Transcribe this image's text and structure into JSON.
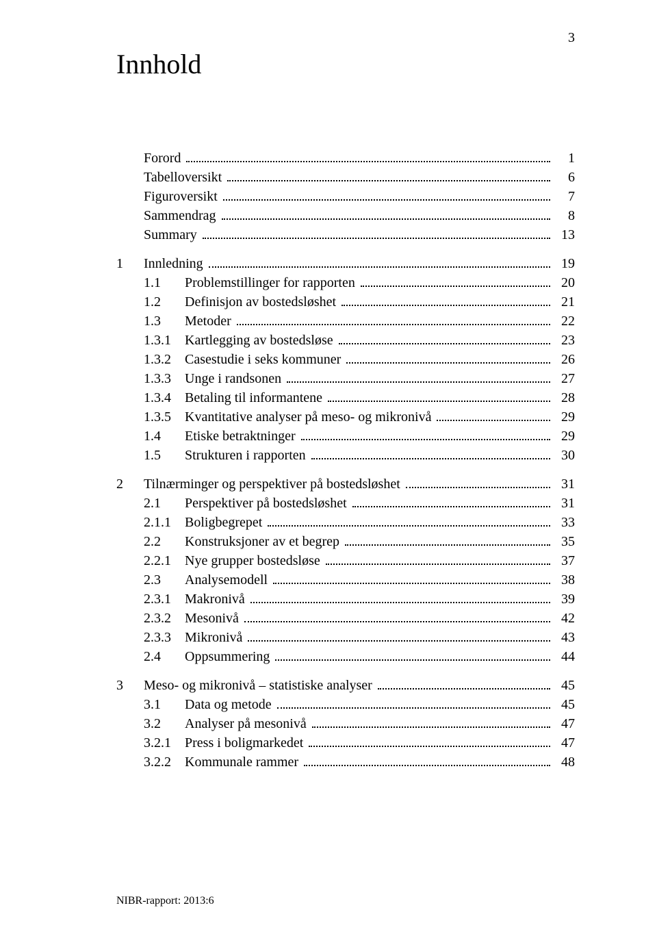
{
  "page_number": "3",
  "title": "Innhold",
  "footer": "NIBR-rapport: 2013:6",
  "front_matter": [
    {
      "label": "Forord",
      "page": "1"
    },
    {
      "label": "Tabelloversikt",
      "page": "6"
    },
    {
      "label": "Figuroversikt",
      "page": "7"
    },
    {
      "label": "Sammendrag",
      "page": "8"
    },
    {
      "label": "Summary",
      "page": "13"
    }
  ],
  "chapters": [
    {
      "num": "1",
      "label": "Innledning",
      "page": "19",
      "items": [
        {
          "num": "1.1",
          "label": "Problemstillinger for rapporten",
          "page": "20"
        },
        {
          "num": "1.2",
          "label": "Definisjon av bostedsløshet",
          "page": "21"
        },
        {
          "num": "1.3",
          "label": "Metoder",
          "page": "22"
        },
        {
          "num": "1.3.1",
          "label": "Kartlegging av bostedsløse",
          "page": "23"
        },
        {
          "num": "1.3.2",
          "label": "Casestudie i seks kommuner",
          "page": "26"
        },
        {
          "num": "1.3.3",
          "label": "Unge i randsonen",
          "page": "27"
        },
        {
          "num": "1.3.4",
          "label": "Betaling til informantene",
          "page": "28"
        },
        {
          "num": "1.3.5",
          "label": "Kvantitative analyser på meso- og mikronivå",
          "page": "29"
        },
        {
          "num": "1.4",
          "label": "Etiske betraktninger",
          "page": "29"
        },
        {
          "num": "1.5",
          "label": "Strukturen i rapporten",
          "page": "30"
        }
      ]
    },
    {
      "num": "2",
      "label": "Tilnærminger og perspektiver på bostedsløshet",
      "page": "31",
      "items": [
        {
          "num": "2.1",
          "label": "Perspektiver på bostedsløshet",
          "page": "31"
        },
        {
          "num": "2.1.1",
          "label": "Boligbegrepet",
          "page": "33"
        },
        {
          "num": "2.2",
          "label": "Konstruksjoner av et begrep",
          "page": "35"
        },
        {
          "num": "2.2.1",
          "label": "Nye grupper bostedsløse",
          "page": "37"
        },
        {
          "num": "2.3",
          "label": "Analysemodell",
          "page": "38"
        },
        {
          "num": "2.3.1",
          "label": "Makronivå",
          "page": "39"
        },
        {
          "num": "2.3.2",
          "label": "Mesonivå",
          "page": "42"
        },
        {
          "num": "2.3.3",
          "label": "Mikronivå",
          "page": "43"
        },
        {
          "num": "2.4",
          "label": "Oppsummering",
          "page": "44"
        }
      ]
    },
    {
      "num": "3",
      "label": "Meso- og mikronivå – statistiske analyser",
      "page": "45",
      "items": [
        {
          "num": "3.1",
          "label": "Data og metode",
          "page": "45"
        },
        {
          "num": "3.2",
          "label": "Analyser på mesonivå",
          "page": "47"
        },
        {
          "num": "3.2.1",
          "label": "Press i boligmarkedet",
          "page": "47"
        },
        {
          "num": "3.2.2",
          "label": "Kommunale rammer",
          "page": "48"
        }
      ]
    }
  ]
}
